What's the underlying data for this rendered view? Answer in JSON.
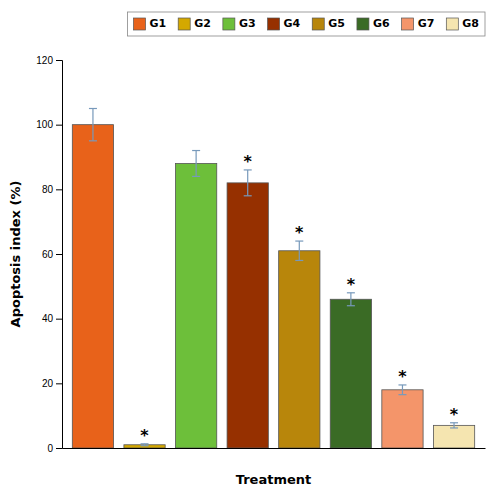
{
  "chart_data": {
    "type": "bar",
    "categories": [
      "G1",
      "G2",
      "G3",
      "G4",
      "G5",
      "G6",
      "G7",
      "G8"
    ],
    "values": [
      100,
      1,
      88,
      82,
      61,
      46,
      18,
      7
    ],
    "errors": [
      5,
      0.3,
      4,
      4,
      3,
      2,
      1.5,
      0.8
    ],
    "colors": [
      "#E8621A",
      "#D4A800",
      "#6DBF3A",
      "#963000",
      "#B8860B",
      "#3A6B25",
      "#F4956A",
      "#F5E5B0"
    ],
    "xlabel": "Treatment",
    "ylabel": "Apoptosis index (%)",
    "ylim": [
      0,
      120
    ],
    "yticks": [
      0,
      20,
      40,
      60,
      80,
      100,
      120
    ],
    "tick_labels": "y",
    "legend": "top",
    "annotations": [
      {
        "text": "*",
        "x": "G2"
      },
      {
        "text": "*",
        "x": "G4"
      },
      {
        "text": "*",
        "x": "G5"
      },
      {
        "text": "*",
        "x": "G6"
      },
      {
        "text": "*",
        "x": "G7"
      },
      {
        "text": "*",
        "x": "G8"
      }
    ]
  }
}
